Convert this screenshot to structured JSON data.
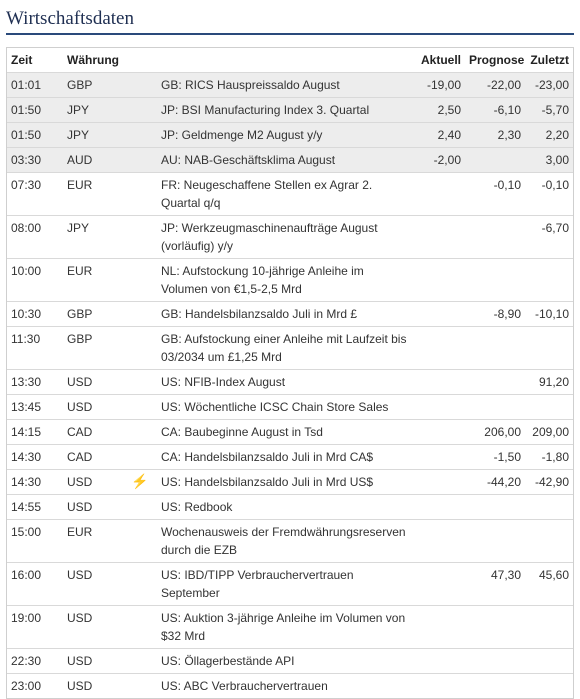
{
  "title": "Wirtschaftsdaten",
  "headers": {
    "zeit": "Zeit",
    "waehrung": "Währung",
    "event": "",
    "aktuell": "Aktuell",
    "prognose": "Prognose",
    "zuletzt": "Zuletzt"
  },
  "rows": [
    {
      "zeit": "01:01",
      "waehrung": "GBP",
      "flag": "",
      "event": "GB: RICS Hauspreissaldo August",
      "aktuell": "-19,00",
      "prognose": "-22,00",
      "zuletzt": "-23,00",
      "highlight": true
    },
    {
      "zeit": "01:50",
      "waehrung": "JPY",
      "flag": "",
      "event": "JP: BSI Manufacturing Index 3. Quartal",
      "aktuell": "2,50",
      "prognose": "-6,10",
      "zuletzt": "-5,70",
      "highlight": true
    },
    {
      "zeit": "01:50",
      "waehrung": "JPY",
      "flag": "",
      "event": "JP: Geldmenge M2 August y/y",
      "aktuell": "2,40",
      "prognose": "2,30",
      "zuletzt": "2,20",
      "highlight": true
    },
    {
      "zeit": "03:30",
      "waehrung": "AUD",
      "flag": "",
      "event": "AU: NAB-Geschäftsklima August",
      "aktuell": "-2,00",
      "prognose": "",
      "zuletzt": "3,00",
      "highlight": true
    },
    {
      "zeit": "07:30",
      "waehrung": "EUR",
      "flag": "",
      "event": "FR: Neugeschaffene Stellen ex Agrar 2. Quartal q/q",
      "aktuell": "",
      "prognose": "-0,10",
      "zuletzt": "-0,10",
      "highlight": false
    },
    {
      "zeit": "08:00",
      "waehrung": "JPY",
      "flag": "",
      "event": "JP: Werkzeugmaschinenaufträge August (vorläufig) y/y",
      "aktuell": "",
      "prognose": "",
      "zuletzt": "-6,70",
      "highlight": false
    },
    {
      "zeit": "10:00",
      "waehrung": "EUR",
      "flag": "",
      "event": "NL: Aufstockung 10-jährige Anleihe im Volumen von €1,5-2,5 Mrd",
      "aktuell": "",
      "prognose": "",
      "zuletzt": "",
      "highlight": false
    },
    {
      "zeit": "10:30",
      "waehrung": "GBP",
      "flag": "",
      "event": "GB: Handelsbilanzsaldo Juli in Mrd £",
      "aktuell": "",
      "prognose": "-8,90",
      "zuletzt": "-10,10",
      "highlight": false
    },
    {
      "zeit": "11:30",
      "waehrung": "GBP",
      "flag": "",
      "event": "GB: Aufstockung einer Anleihe mit Laufzeit bis 03/2034 um £1,25 Mrd",
      "aktuell": "",
      "prognose": "",
      "zuletzt": "",
      "highlight": false
    },
    {
      "zeit": "13:30",
      "waehrung": "USD",
      "flag": "",
      "event": "US: NFIB-Index August",
      "aktuell": "",
      "prognose": "",
      "zuletzt": "91,20",
      "highlight": false
    },
    {
      "zeit": "13:45",
      "waehrung": "USD",
      "flag": "",
      "event": "US: Wöchentliche ICSC Chain Store Sales",
      "aktuell": "",
      "prognose": "",
      "zuletzt": "",
      "highlight": false
    },
    {
      "zeit": "14:15",
      "waehrung": "CAD",
      "flag": "",
      "event": "CA: Baubeginne August in Tsd",
      "aktuell": "",
      "prognose": "206,00",
      "zuletzt": "209,00",
      "highlight": false
    },
    {
      "zeit": "14:30",
      "waehrung": "CAD",
      "flag": "",
      "event": "CA: Handelsbilanzsaldo Juli in Mrd CA$",
      "aktuell": "",
      "prognose": "-1,50",
      "zuletzt": "-1,80",
      "highlight": false
    },
    {
      "zeit": "14:30",
      "waehrung": "USD",
      "flag": "lightning-icon",
      "event": "US: Handelsbilanzsaldo Juli in Mrd US$",
      "aktuell": "",
      "prognose": "-44,20",
      "zuletzt": "-42,90",
      "highlight": false
    },
    {
      "zeit": "14:55",
      "waehrung": "USD",
      "flag": "",
      "event": "US: Redbook",
      "aktuell": "",
      "prognose": "",
      "zuletzt": "",
      "highlight": false
    },
    {
      "zeit": "15:00",
      "waehrung": "EUR",
      "flag": "",
      "event": "Wochenausweis der Fremdwährungsreserven durch die EZB",
      "aktuell": "",
      "prognose": "",
      "zuletzt": "",
      "highlight": false
    },
    {
      "zeit": "16:00",
      "waehrung": "USD",
      "flag": "",
      "event": "US: IBD/TIPP Verbrauchervertrauen September",
      "aktuell": "",
      "prognose": "47,30",
      "zuletzt": "45,60",
      "highlight": false
    },
    {
      "zeit": "19:00",
      "waehrung": "USD",
      "flag": "",
      "event": "US: Auktion 3-jährige Anleihe im Volumen von $32 Mrd",
      "aktuell": "",
      "prognose": "",
      "zuletzt": "",
      "highlight": false
    },
    {
      "zeit": "22:30",
      "waehrung": "USD",
      "flag": "",
      "event": "US: Öllagerbestände API",
      "aktuell": "",
      "prognose": "",
      "zuletzt": "",
      "highlight": false
    },
    {
      "zeit": "23:00",
      "waehrung": "USD",
      "flag": "",
      "event": "US: ABC Verbrauchervertrauen",
      "aktuell": "",
      "prognose": "",
      "zuletzt": "",
      "highlight": false
    }
  ],
  "colors": {
    "title": "#1f2f52",
    "rule": "#2a4a7b",
    "highlight_row": "#ededed",
    "bolt": "#f0a500"
  }
}
